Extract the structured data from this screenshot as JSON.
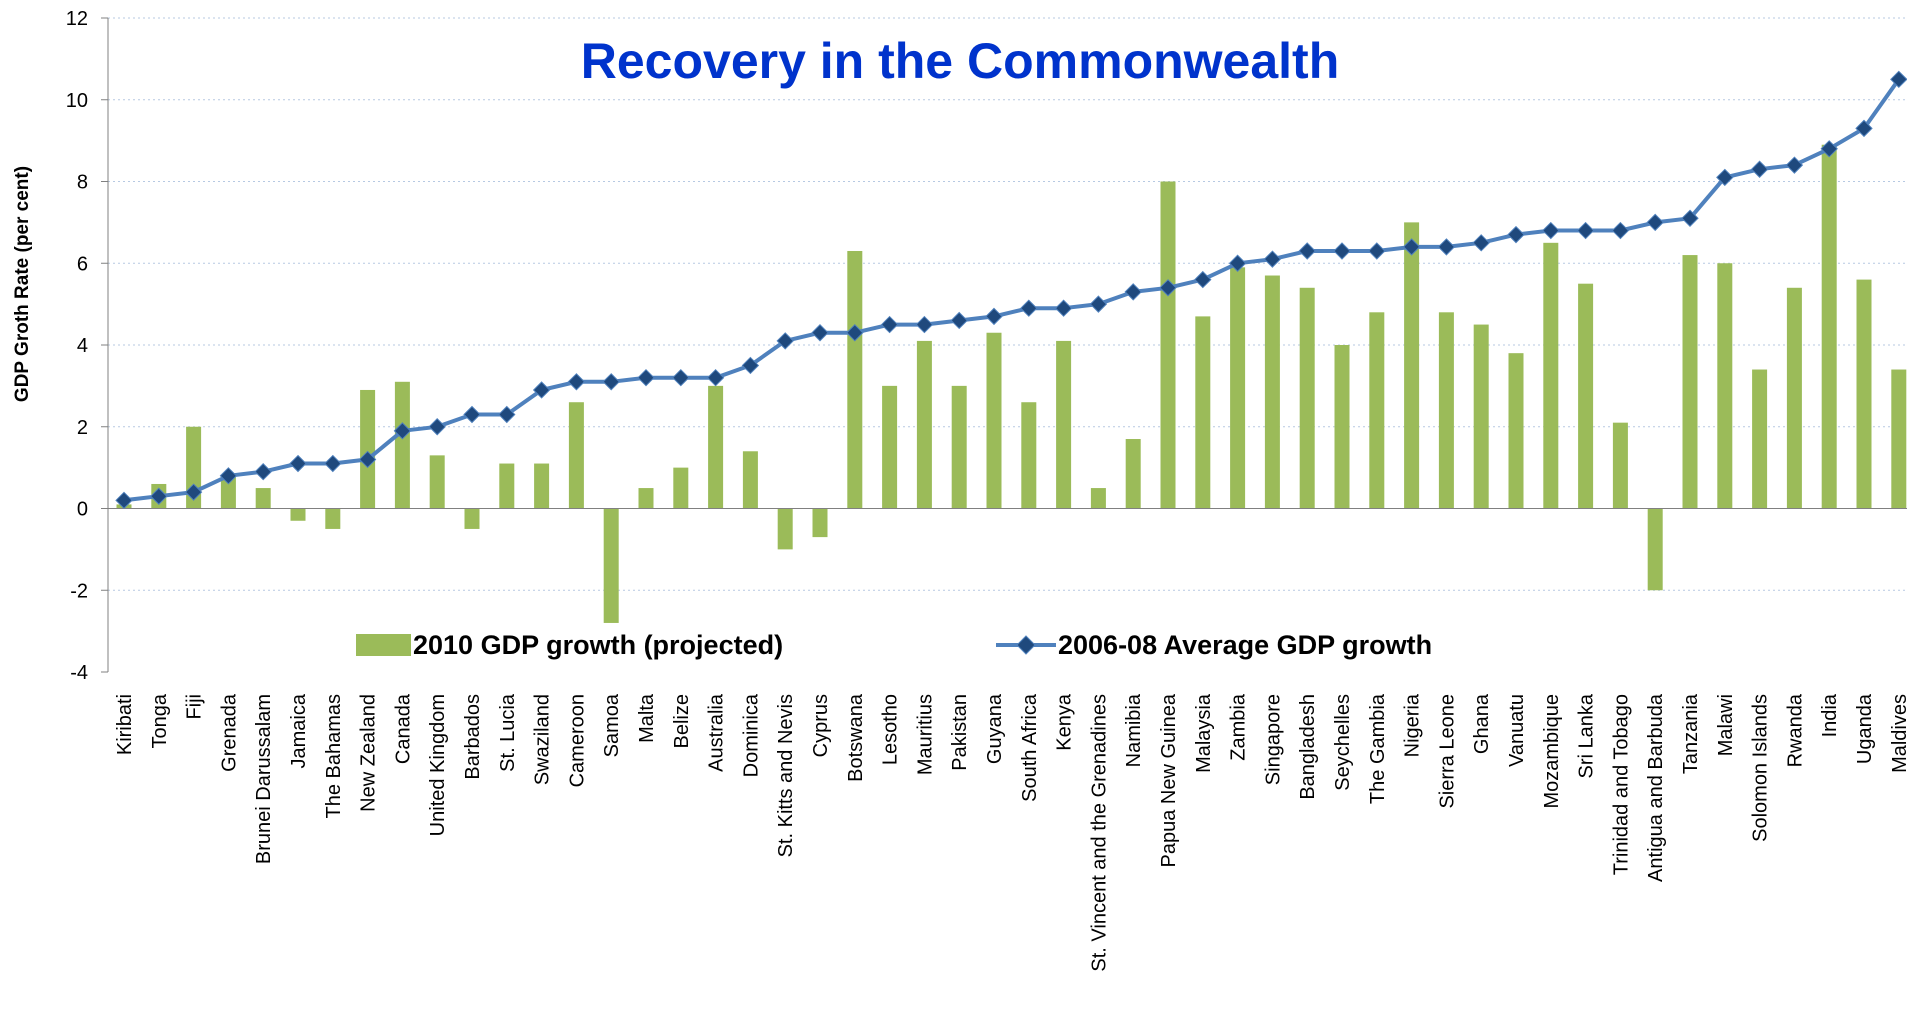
{
  "colors": {
    "bar": "#9BBB59",
    "line": "#4F81BD",
    "marker": "#1F497D",
    "title": "#0033CC",
    "grid": "#B7C9E2",
    "axis": "#808080"
  },
  "chart_data": {
    "type": "bar",
    "title": "Recovery in the Commonwealth",
    "xlabel": "",
    "ylabel": "GDP Groth Rate (per cent)",
    "ylim": [
      -4,
      12
    ],
    "yticks": [
      "-4",
      "-2",
      "0",
      "2",
      "4",
      "6",
      "8",
      "10",
      "12"
    ],
    "grid": true,
    "legend_position": "bottom-center inside plot",
    "categories": [
      "Kiribati",
      "Tonga",
      "Fiji",
      "Grenada",
      "Brunei Darussalam",
      "Jamaica",
      "The Bahamas",
      "New Zealand",
      "Canada",
      "United Kingdom",
      "Barbados",
      "St. Lucia",
      "Swaziland",
      "Cameroon",
      "Samoa",
      "Malta",
      "Belize",
      "Australia",
      "Dominica",
      "St. Kitts and Nevis",
      "Cyprus",
      "Botswana",
      "Lesotho",
      "Mauritius",
      "Pakistan",
      "Guyana",
      "South Africa",
      "Kenya",
      "St. Vincent and the Grenadines",
      "Namibia",
      "Papua New Guinea",
      "Malaysia",
      "Zambia",
      "Singapore",
      "Bangladesh",
      "Seychelles",
      "The Gambia",
      "Nigeria",
      "Sierra Leone",
      "Ghana",
      "Vanuatu",
      "Mozambique",
      "Sri Lanka",
      "Trinidad and Tobago",
      "Antigua and Barbuda",
      "Tanzania",
      "Malawi",
      "Solomon Islands",
      "Rwanda",
      "India",
      "Uganda",
      "Maldives"
    ],
    "series": [
      {
        "name": "2010 GDP growth (projected)",
        "type": "bar",
        "values": [
          0.1,
          0.6,
          2.0,
          0.8,
          0.5,
          -0.3,
          -0.5,
          2.9,
          3.1,
          1.3,
          -0.5,
          1.1,
          1.1,
          2.6,
          -2.8,
          0.5,
          1.0,
          3.0,
          1.4,
          -1.0,
          -0.7,
          6.3,
          3.0,
          4.1,
          3.0,
          4.3,
          2.6,
          4.1,
          0.5,
          1.7,
          8.0,
          4.7,
          5.9,
          5.7,
          5.4,
          4.0,
          4.8,
          7.0,
          4.8,
          4.5,
          3.8,
          6.5,
          5.5,
          2.1,
          -2.0,
          6.2,
          6.0,
          3.4,
          5.4,
          8.9,
          5.6,
          3.4
        ]
      },
      {
        "name": "2006-08 Average GDP growth",
        "type": "line",
        "values": [
          0.2,
          0.3,
          0.4,
          0.8,
          0.9,
          1.1,
          1.1,
          1.2,
          1.9,
          2.0,
          2.3,
          2.3,
          2.9,
          3.1,
          3.1,
          3.2,
          3.2,
          3.2,
          3.5,
          4.1,
          4.3,
          4.3,
          4.5,
          4.5,
          4.6,
          4.7,
          4.9,
          4.9,
          5.0,
          5.3,
          5.4,
          5.6,
          6.0,
          6.1,
          6.3,
          6.3,
          6.3,
          6.4,
          6.4,
          6.5,
          6.7,
          6.8,
          6.8,
          6.8,
          7.0,
          7.1,
          8.1,
          8.3,
          8.4,
          8.8,
          9.3,
          10.5
        ]
      }
    ]
  }
}
